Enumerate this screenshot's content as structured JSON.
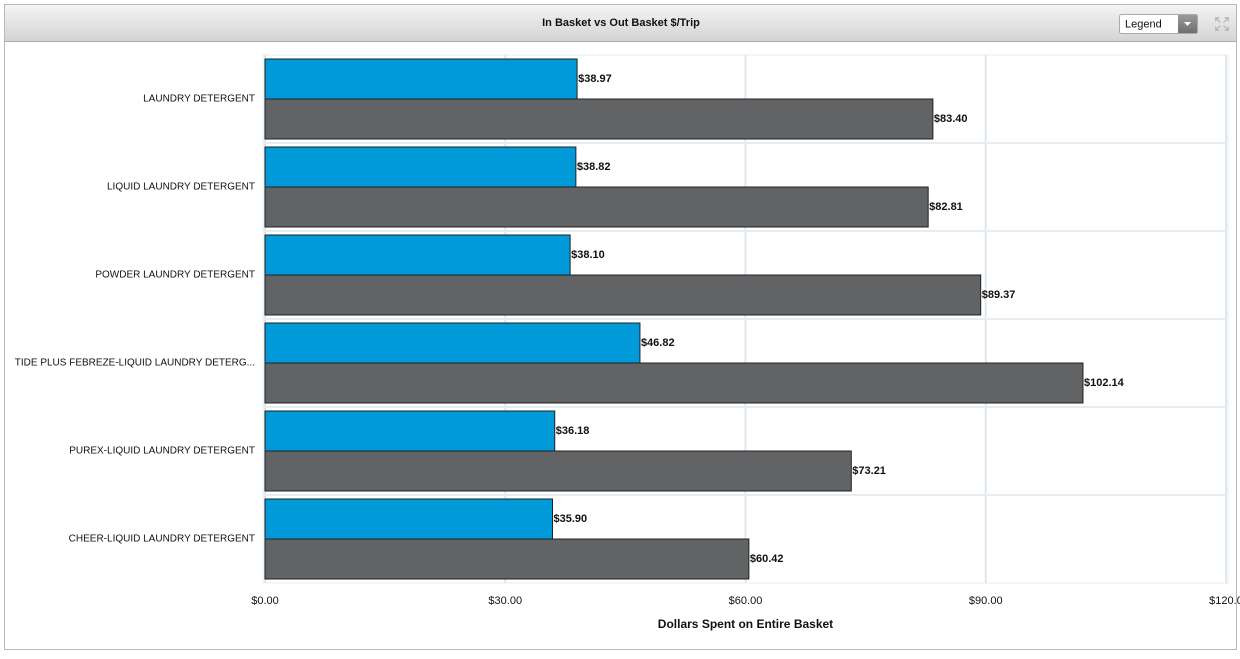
{
  "legend_button": "Legend",
  "chart_data": {
    "type": "bar",
    "orientation": "horizontal",
    "title": "In Basket vs Out Basket $/Trip",
    "x_label": "Dollars Spent on Entire Basket",
    "categories": [
      "LAUNDRY DETERGENT",
      "LIQUID LAUNDRY DETERGENT",
      "POWDER LAUNDRY DETERGENT",
      "TIDE PLUS FEBREZE-LIQUID LAUNDRY DETERG...",
      "PUREX-LIQUID LAUNDRY DETERGENT",
      "CHEER-LIQUID LAUNDRY DETERGENT"
    ],
    "series": [
      {
        "color": "#009ad8",
        "values": [
          38.97,
          38.82,
          38.1,
          46.82,
          36.18,
          35.9
        ],
        "value_labels": [
          "$38.97",
          "$38.82",
          "$38.10",
          "$46.82",
          "$36.18",
          "$35.90"
        ]
      },
      {
        "color": "#626365",
        "values": [
          83.4,
          82.81,
          89.37,
          102.14,
          73.21,
          60.42
        ],
        "value_labels": [
          "$83.40",
          "$82.81",
          "$89.37",
          "$102.14",
          "$73.21",
          "$60.42"
        ]
      }
    ],
    "xlim": [
      0,
      120
    ],
    "xticks": [
      {
        "value": 0,
        "label": "$0.00"
      },
      {
        "value": 30,
        "label": "$30.00"
      },
      {
        "value": 60,
        "label": "$60.00"
      },
      {
        "value": 90,
        "label": "$90.00"
      },
      {
        "value": 120,
        "label": "$120.0"
      }
    ],
    "grid": true
  }
}
